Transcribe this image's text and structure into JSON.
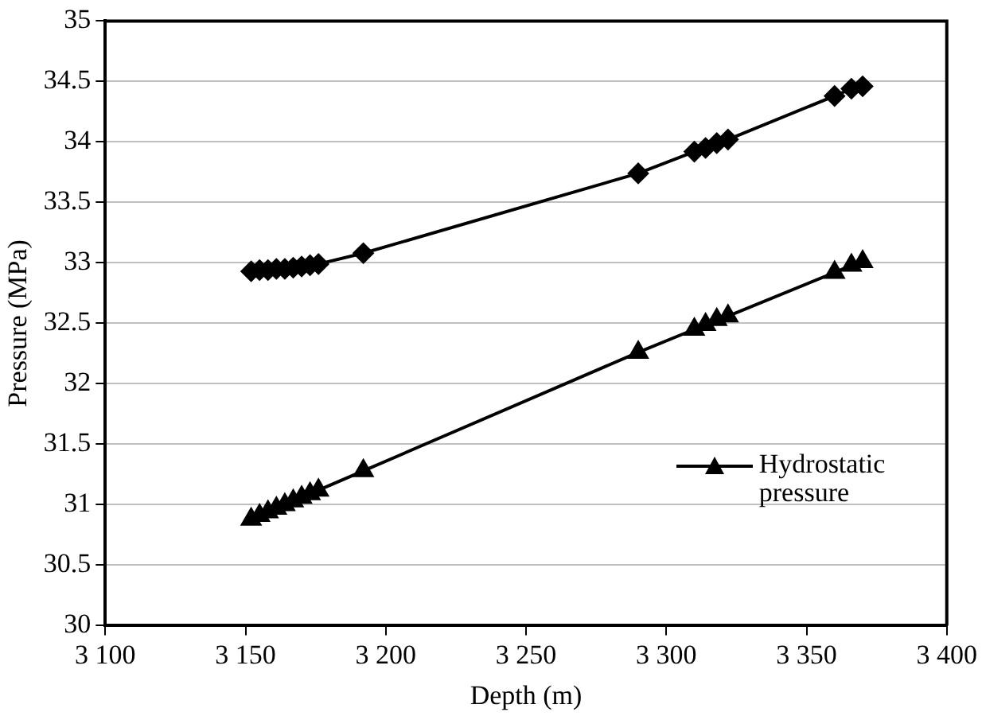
{
  "chart_data": {
    "type": "line",
    "xlabel": "Depth (m)",
    "ylabel": "Pressure (MPa)",
    "xlim": [
      3100,
      3400
    ],
    "xticks": [
      {
        "value": 3100,
        "label": "3 100"
      },
      {
        "value": 3150,
        "label": "3 150"
      },
      {
        "value": 3200,
        "label": "3 200"
      },
      {
        "value": 3250,
        "label": "3 250"
      },
      {
        "value": 3300,
        "label": "3 300"
      },
      {
        "value": 3350,
        "label": "3 350"
      },
      {
        "value": 3400,
        "label": "3 400"
      }
    ],
    "ylim": [
      30,
      35
    ],
    "yticks": [
      30,
      30.5,
      31,
      31.5,
      32,
      32.5,
      33,
      33.5,
      34,
      34.5,
      35
    ],
    "grid": "y",
    "legend": "bottom right",
    "line_style": "solid",
    "series": [
      {
        "color": "#000000",
        "marker": "diamond",
        "x": [
          3152,
          3155,
          3158,
          3161,
          3164,
          3167,
          3170,
          3173,
          3176,
          3192,
          3290,
          3310,
          3314,
          3318,
          3322,
          3360,
          3366,
          3370
        ],
        "values": [
          32.93,
          32.94,
          32.94,
          32.95,
          32.95,
          32.96,
          32.97,
          32.98,
          32.99,
          33.08,
          33.74,
          33.92,
          33.95,
          33.99,
          34.02,
          34.38,
          34.44,
          34.46
        ]
      },
      {
        "name": "Hydrostatic pressure",
        "color": "#000000",
        "marker": "triangle",
        "x": [
          3152,
          3155,
          3158,
          3161,
          3164,
          3167,
          3170,
          3173,
          3176,
          3192,
          3290,
          3310,
          3314,
          3318,
          3322,
          3360,
          3366,
          3370
        ],
        "values": [
          30.88,
          30.91,
          30.94,
          30.97,
          31.0,
          31.03,
          31.06,
          31.09,
          31.12,
          31.28,
          32.26,
          32.45,
          32.49,
          32.53,
          32.56,
          32.92,
          32.98,
          33.01
        ]
      }
    ]
  }
}
